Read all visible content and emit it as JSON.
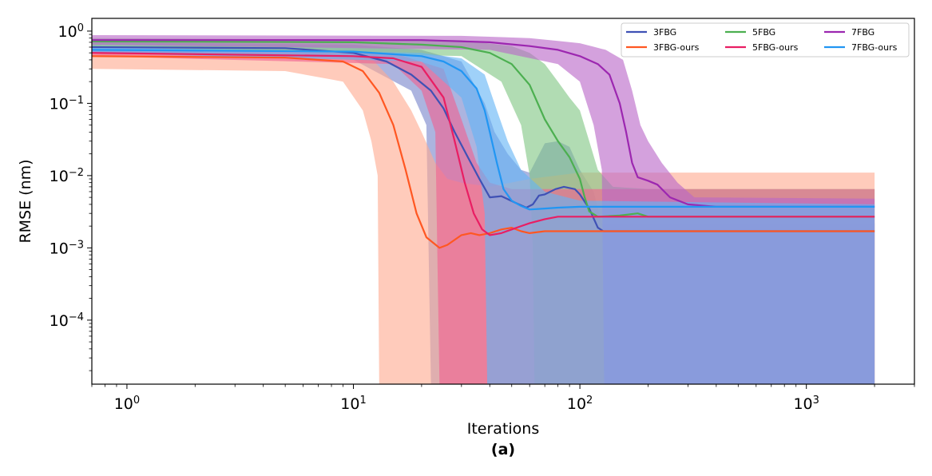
{
  "chart_data": {
    "type": "line",
    "title": "",
    "xlabel": "Iterations",
    "ylabel": "RMSE (nm)",
    "sublabel": "(a)",
    "x_scale": "log",
    "y_scale": "log",
    "xlim": [
      0.7,
      3000
    ],
    "ylim": [
      1.3e-05,
      1.5
    ],
    "x_ticks": [
      {
        "value": 1,
        "label": "10^0"
      },
      {
        "value": 10,
        "label": "10^1"
      },
      {
        "value": 100,
        "label": "10^2"
      },
      {
        "value": 1000,
        "label": "10^3"
      }
    ],
    "y_ticks": [
      {
        "value": 0.0001,
        "label": "10^-4"
      },
      {
        "value": 0.001,
        "label": "10^-3"
      },
      {
        "value": 0.01,
        "label": "10^-2"
      },
      {
        "value": 0.1,
        "label": "10^-1"
      },
      {
        "value": 1,
        "label": "10^0"
      }
    ],
    "grid": false,
    "legend_position": "top-right",
    "series": [
      {
        "name": "3FBG",
        "color": "#3f51b5",
        "band_color": "#7986cb",
        "points": [
          [
            0.7,
            0.6
          ],
          [
            5,
            0.58
          ],
          [
            10,
            0.5
          ],
          [
            14,
            0.38
          ],
          [
            18,
            0.25
          ],
          [
            22,
            0.15
          ],
          [
            25,
            0.085
          ],
          [
            28,
            0.04
          ],
          [
            32,
            0.018
          ],
          [
            36,
            0.009
          ],
          [
            40,
            0.005
          ],
          [
            45,
            0.0052
          ],
          [
            52,
            0.0042
          ],
          [
            58,
            0.0036
          ],
          [
            62,
            0.004
          ],
          [
            66,
            0.0053
          ],
          [
            70,
            0.0055
          ],
          [
            78,
            0.0065
          ],
          [
            85,
            0.007
          ],
          [
            95,
            0.0065
          ],
          [
            100,
            0.0055
          ],
          [
            110,
            0.0035
          ],
          [
            120,
            0.0019
          ],
          [
            127,
            0.0017
          ],
          [
            2000,
            0.0017
          ]
        ],
        "band_upper": [
          [
            0.7,
            0.7
          ],
          [
            10,
            0.65
          ],
          [
            20,
            0.55
          ],
          [
            30,
            0.38
          ],
          [
            38,
            0.1
          ],
          [
            42,
            0.04
          ],
          [
            48,
            0.02
          ],
          [
            55,
            0.012
          ],
          [
            60,
            0.011
          ],
          [
            70,
            0.028
          ],
          [
            80,
            0.03
          ],
          [
            90,
            0.025
          ],
          [
            100,
            0.012
          ],
          [
            115,
            0.006
          ],
          [
            125,
            0.0022
          ],
          [
            2000,
            0.0022
          ]
        ],
        "band_lower": [
          [
            0.7,
            0.5
          ],
          [
            10,
            0.4
          ],
          [
            18,
            0.15
          ],
          [
            21,
            0.05
          ],
          [
            22,
            1e-05
          ],
          [
            2000,
            1e-05
          ]
        ]
      },
      {
        "name": "3FBG-ours",
        "color": "#ff5722",
        "band_color": "#ffab91",
        "points": [
          [
            0.7,
            0.45
          ],
          [
            5,
            0.43
          ],
          [
            9,
            0.38
          ],
          [
            11,
            0.28
          ],
          [
            13,
            0.14
          ],
          [
            15,
            0.05
          ],
          [
            17,
            0.012
          ],
          [
            19,
            0.003
          ],
          [
            21,
            0.0014
          ],
          [
            24,
            0.001
          ],
          [
            26,
            0.0011
          ],
          [
            30,
            0.0015
          ],
          [
            33,
            0.0016
          ],
          [
            36,
            0.0015
          ],
          [
            40,
            0.0016
          ],
          [
            45,
            0.0018
          ],
          [
            50,
            0.0019
          ],
          [
            55,
            0.0017
          ],
          [
            60,
            0.0016
          ],
          [
            70,
            0.0017
          ],
          [
            2000,
            0.0017
          ]
        ],
        "band_upper": [
          [
            0.7,
            0.5
          ],
          [
            8,
            0.5
          ],
          [
            12,
            0.42
          ],
          [
            15,
            0.2
          ],
          [
            18,
            0.08
          ],
          [
            20,
            0.04
          ],
          [
            23,
            0.015
          ],
          [
            26,
            0.009
          ],
          [
            30,
            0.008
          ],
          [
            40,
            0.007
          ],
          [
            60,
            0.009
          ],
          [
            100,
            0.011
          ],
          [
            2000,
            0.011
          ]
        ],
        "band_lower": [
          [
            0.7,
            0.3
          ],
          [
            5,
            0.28
          ],
          [
            9,
            0.2
          ],
          [
            11,
            0.08
          ],
          [
            12,
            0.03
          ],
          [
            12.8,
            0.01
          ],
          [
            13,
            1e-05
          ],
          [
            2000,
            1e-05
          ]
        ]
      },
      {
        "name": "5FBG",
        "color": "#4caf50",
        "band_color": "#81c784",
        "points": [
          [
            0.7,
            0.72
          ],
          [
            10,
            0.7
          ],
          [
            20,
            0.65
          ],
          [
            30,
            0.6
          ],
          [
            40,
            0.5
          ],
          [
            50,
            0.35
          ],
          [
            60,
            0.18
          ],
          [
            70,
            0.06
          ],
          [
            80,
            0.03
          ],
          [
            90,
            0.018
          ],
          [
            100,
            0.009
          ],
          [
            105,
            0.005
          ],
          [
            110,
            0.0032
          ],
          [
            120,
            0.0027
          ],
          [
            150,
            0.0028
          ],
          [
            180,
            0.003
          ],
          [
            200,
            0.0027
          ],
          [
            2000,
            0.0027
          ]
        ],
        "band_upper": [
          [
            0.7,
            0.8
          ],
          [
            30,
            0.75
          ],
          [
            50,
            0.62
          ],
          [
            60,
            0.5
          ],
          [
            70,
            0.35
          ],
          [
            80,
            0.2
          ],
          [
            90,
            0.12
          ],
          [
            100,
            0.08
          ],
          [
            110,
            0.03
          ],
          [
            120,
            0.012
          ],
          [
            140,
            0.007
          ],
          [
            200,
            0.0065
          ],
          [
            2000,
            0.0065
          ]
        ],
        "band_lower": [
          [
            0.7,
            0.6
          ],
          [
            30,
            0.45
          ],
          [
            45,
            0.2
          ],
          [
            55,
            0.05
          ],
          [
            60,
            0.01
          ],
          [
            62,
            0.001
          ],
          [
            63,
            1e-05
          ],
          [
            2000,
            1e-05
          ]
        ]
      },
      {
        "name": "5FBG-ours",
        "color": "#e91e63",
        "band_color": "#f06292",
        "points": [
          [
            0.7,
            0.5
          ],
          [
            10,
            0.45
          ],
          [
            15,
            0.42
          ],
          [
            20,
            0.32
          ],
          [
            25,
            0.12
          ],
          [
            28,
            0.03
          ],
          [
            31,
            0.008
          ],
          [
            34,
            0.003
          ],
          [
            37,
            0.0018
          ],
          [
            40,
            0.0015
          ],
          [
            45,
            0.0016
          ],
          [
            50,
            0.0018
          ],
          [
            55,
            0.002
          ],
          [
            60,
            0.0022
          ],
          [
            70,
            0.0025
          ],
          [
            80,
            0.0027
          ],
          [
            2000,
            0.0027
          ]
        ],
        "band_upper": [
          [
            0.7,
            0.55
          ],
          [
            15,
            0.5
          ],
          [
            25,
            0.3
          ],
          [
            30,
            0.06
          ],
          [
            35,
            0.015
          ],
          [
            40,
            0.008
          ],
          [
            50,
            0.0065
          ],
          [
            2000,
            0.0065
          ]
        ],
        "band_lower": [
          [
            0.7,
            0.45
          ],
          [
            15,
            0.35
          ],
          [
            20,
            0.15
          ],
          [
            23,
            0.04
          ],
          [
            24,
            1e-05
          ],
          [
            2000,
            1e-05
          ]
        ]
      },
      {
        "name": "7FBG",
        "color": "#9c27b0",
        "band_color": "#ba68c8",
        "points": [
          [
            0.7,
            0.75
          ],
          [
            20,
            0.75
          ],
          [
            40,
            0.7
          ],
          [
            60,
            0.62
          ],
          [
            80,
            0.55
          ],
          [
            100,
            0.45
          ],
          [
            120,
            0.35
          ],
          [
            135,
            0.25
          ],
          [
            150,
            0.1
          ],
          [
            160,
            0.04
          ],
          [
            170,
            0.015
          ],
          [
            180,
            0.0095
          ],
          [
            200,
            0.0085
          ],
          [
            220,
            0.0075
          ],
          [
            250,
            0.005
          ],
          [
            300,
            0.004
          ],
          [
            400,
            0.0037
          ],
          [
            2000,
            0.0037
          ]
        ],
        "band_upper": [
          [
            0.7,
            0.88
          ],
          [
            30,
            0.86
          ],
          [
            60,
            0.8
          ],
          [
            100,
            0.68
          ],
          [
            130,
            0.55
          ],
          [
            155,
            0.4
          ],
          [
            170,
            0.15
          ],
          [
            185,
            0.05
          ],
          [
            200,
            0.03
          ],
          [
            230,
            0.015
          ],
          [
            270,
            0.008
          ],
          [
            320,
            0.005
          ],
          [
            2000,
            0.0048
          ]
        ],
        "band_lower": [
          [
            0.7,
            0.65
          ],
          [
            40,
            0.55
          ],
          [
            80,
            0.35
          ],
          [
            100,
            0.2
          ],
          [
            115,
            0.05
          ],
          [
            125,
            0.012
          ],
          [
            128,
            1e-05
          ],
          [
            2000,
            1e-05
          ]
        ]
      },
      {
        "name": "7FBG-ours",
        "color": "#2196f3",
        "band_color": "#64b5f6",
        "points": [
          [
            0.7,
            0.55
          ],
          [
            10,
            0.52
          ],
          [
            20,
            0.45
          ],
          [
            25,
            0.38
          ],
          [
            30,
            0.28
          ],
          [
            35,
            0.16
          ],
          [
            38,
            0.08
          ],
          [
            40,
            0.04
          ],
          [
            43,
            0.015
          ],
          [
            46,
            0.0065
          ],
          [
            50,
            0.0045
          ],
          [
            55,
            0.0038
          ],
          [
            60,
            0.0034
          ],
          [
            70,
            0.0035
          ],
          [
            80,
            0.0036
          ],
          [
            100,
            0.0037
          ],
          [
            2000,
            0.0037
          ]
        ],
        "band_upper": [
          [
            0.7,
            0.6
          ],
          [
            20,
            0.5
          ],
          [
            30,
            0.42
          ],
          [
            38,
            0.25
          ],
          [
            43,
            0.08
          ],
          [
            48,
            0.03
          ],
          [
            55,
            0.012
          ],
          [
            70,
            0.006
          ],
          [
            100,
            0.0045
          ],
          [
            2000,
            0.004
          ]
        ],
        "band_lower": [
          [
            0.7,
            0.5
          ],
          [
            20,
            0.38
          ],
          [
            30,
            0.12
          ],
          [
            35,
            0.025
          ],
          [
            38,
            0.003
          ],
          [
            39,
            1e-05
          ],
          [
            2000,
            1e-05
          ]
        ]
      }
    ]
  }
}
